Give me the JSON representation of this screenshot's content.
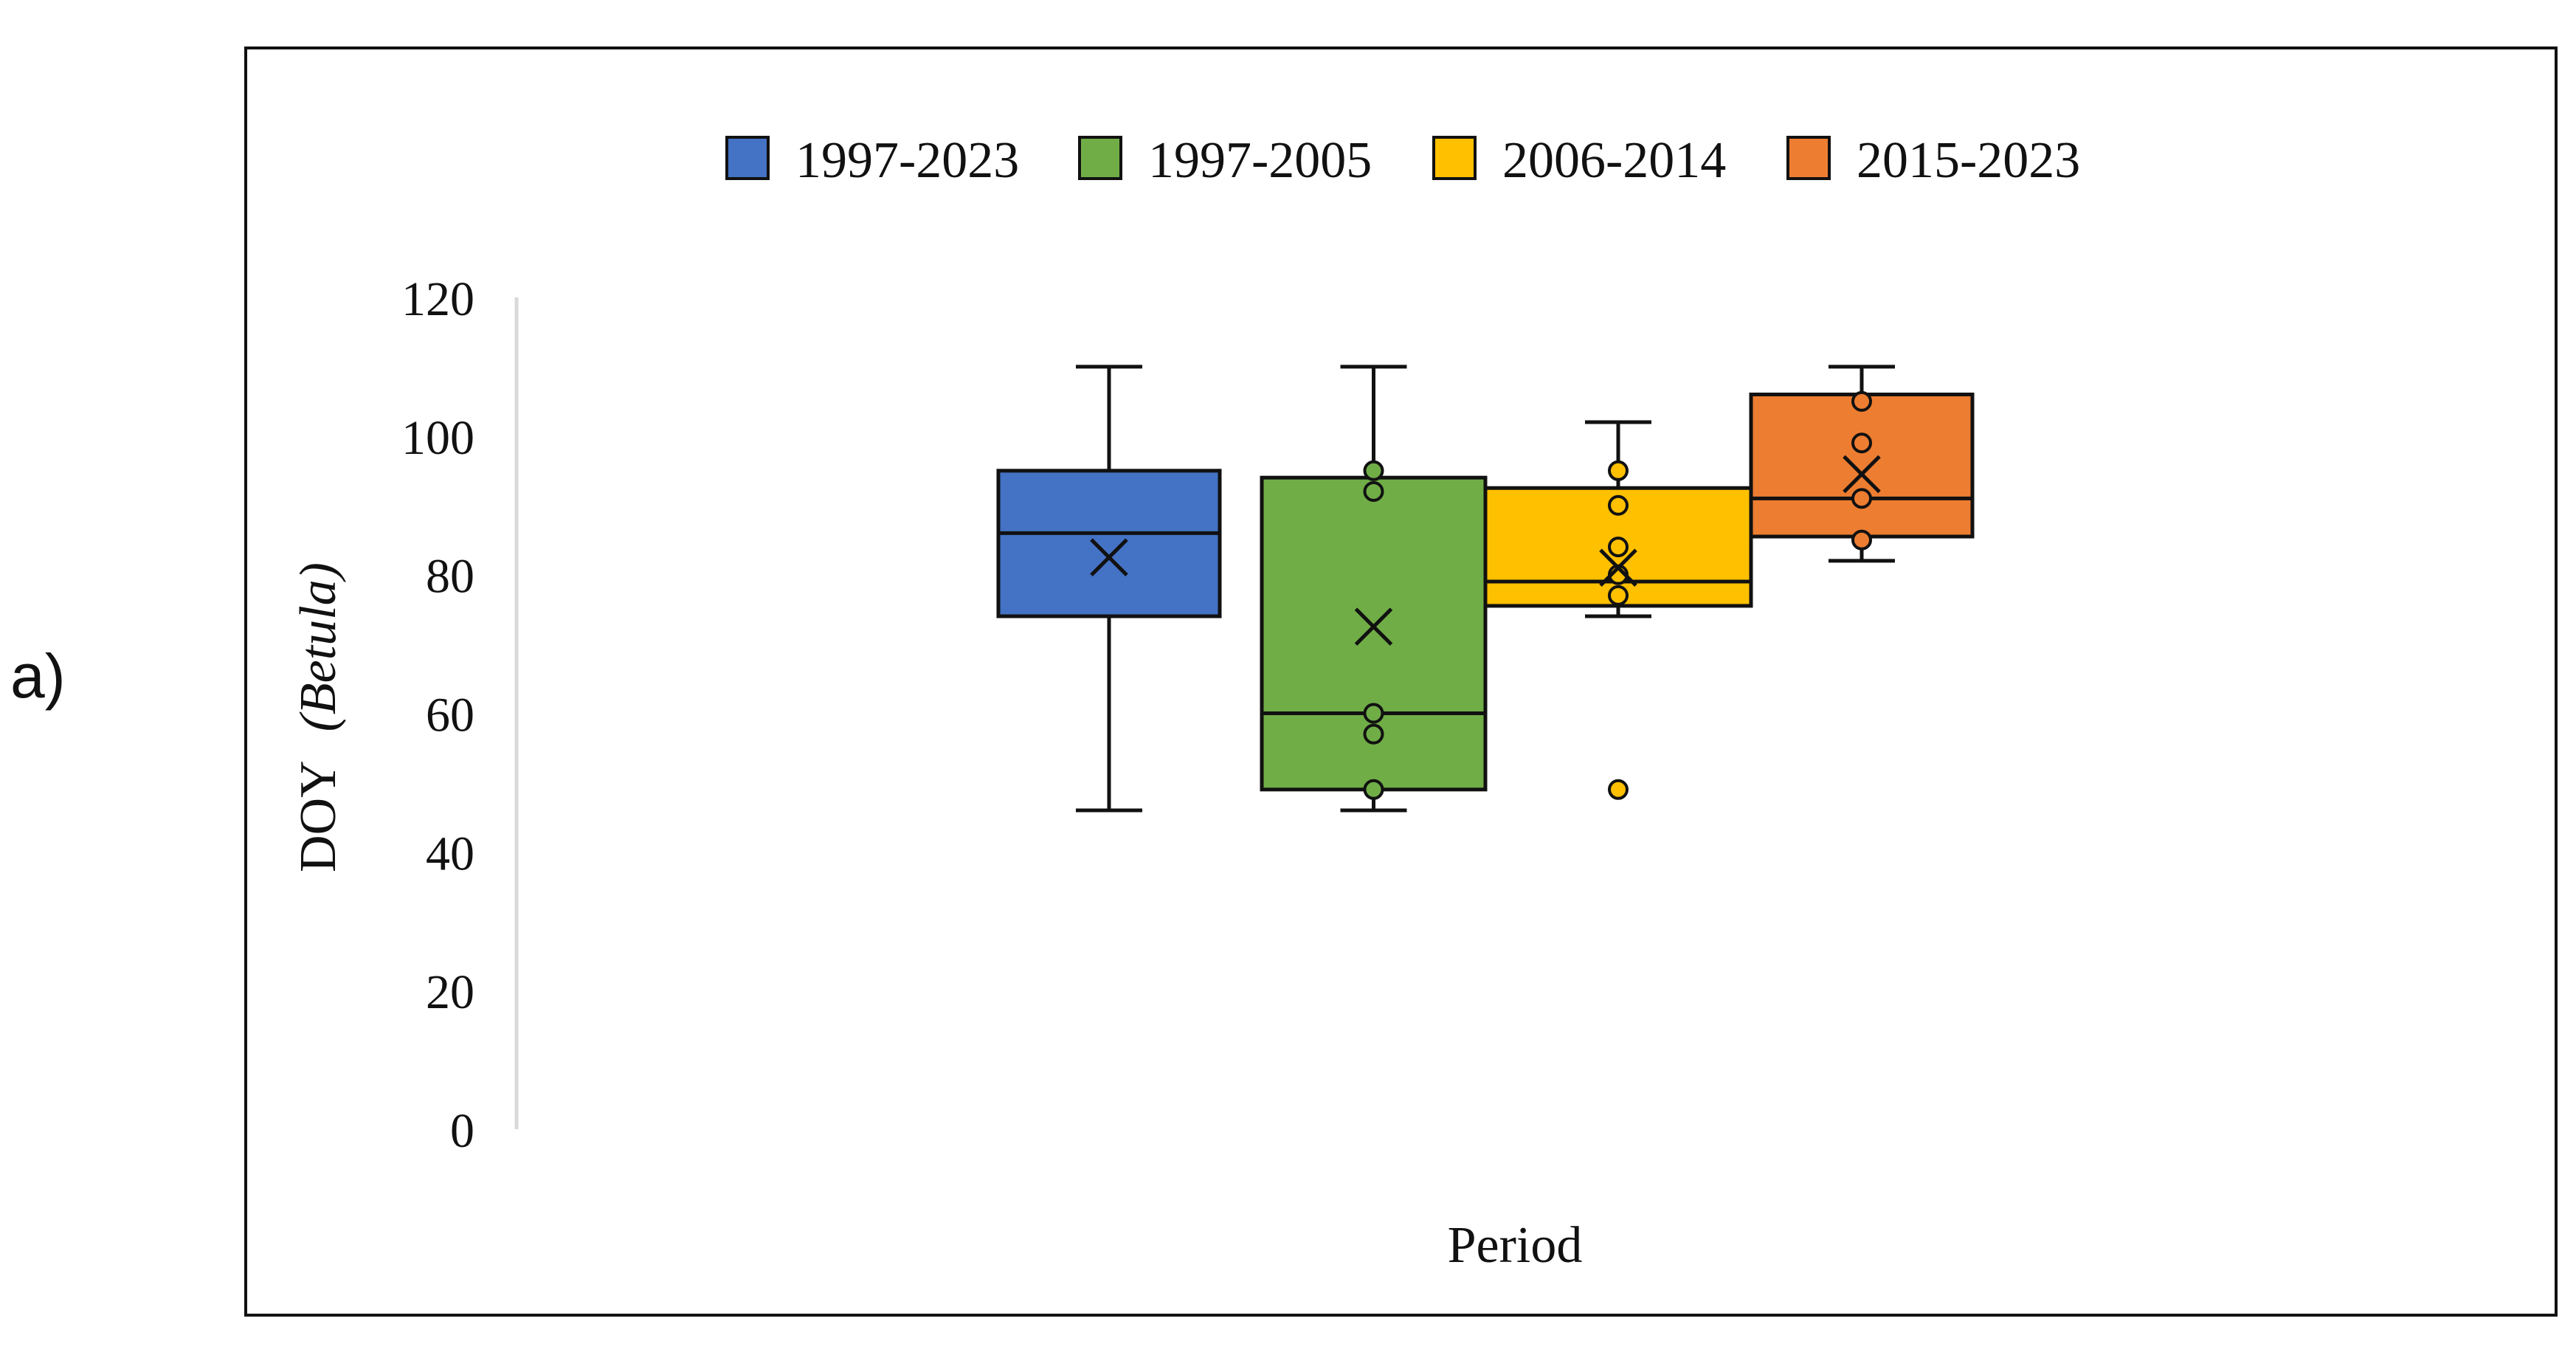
{
  "panel_label": "a)",
  "chart_data": {
    "type": "box",
    "title": "",
    "xlabel": "Period",
    "ylabel": "DOY",
    "ylabel_italic": "(Betula)",
    "ylim": [
      0,
      120
    ],
    "yticks": [
      0,
      20,
      40,
      60,
      80,
      100,
      120
    ],
    "legend_position": "top-center",
    "series": [
      {
        "name": "1997-2023",
        "color": "#4472C4",
        "whisker_low": 46,
        "q1": 74,
        "median": 86,
        "q3": 95,
        "whisker_high": 110,
        "mean": 82.5,
        "points": []
      },
      {
        "name": "1997-2005",
        "color": "#70AD47",
        "whisker_low": 46,
        "q1": 49,
        "median": 60,
        "q3": 94,
        "whisker_high": 110,
        "mean": 72.5,
        "points": [
          49,
          57,
          60,
          92,
          95
        ]
      },
      {
        "name": "2006-2014",
        "color": "#FFC000",
        "whisker_low": 74,
        "q1": 75.5,
        "median": 79,
        "q3": 92.5,
        "whisker_high": 102,
        "mean": 81,
        "points": [
          49,
          77,
          80,
          84,
          90,
          95
        ]
      },
      {
        "name": "2015-2023",
        "color": "#ED7D31",
        "whisker_low": 82,
        "q1": 85.5,
        "median": 91,
        "q3": 106,
        "whisker_high": 110,
        "mean": 94.5,
        "points": [
          85,
          91,
          99,
          105
        ]
      }
    ]
  }
}
